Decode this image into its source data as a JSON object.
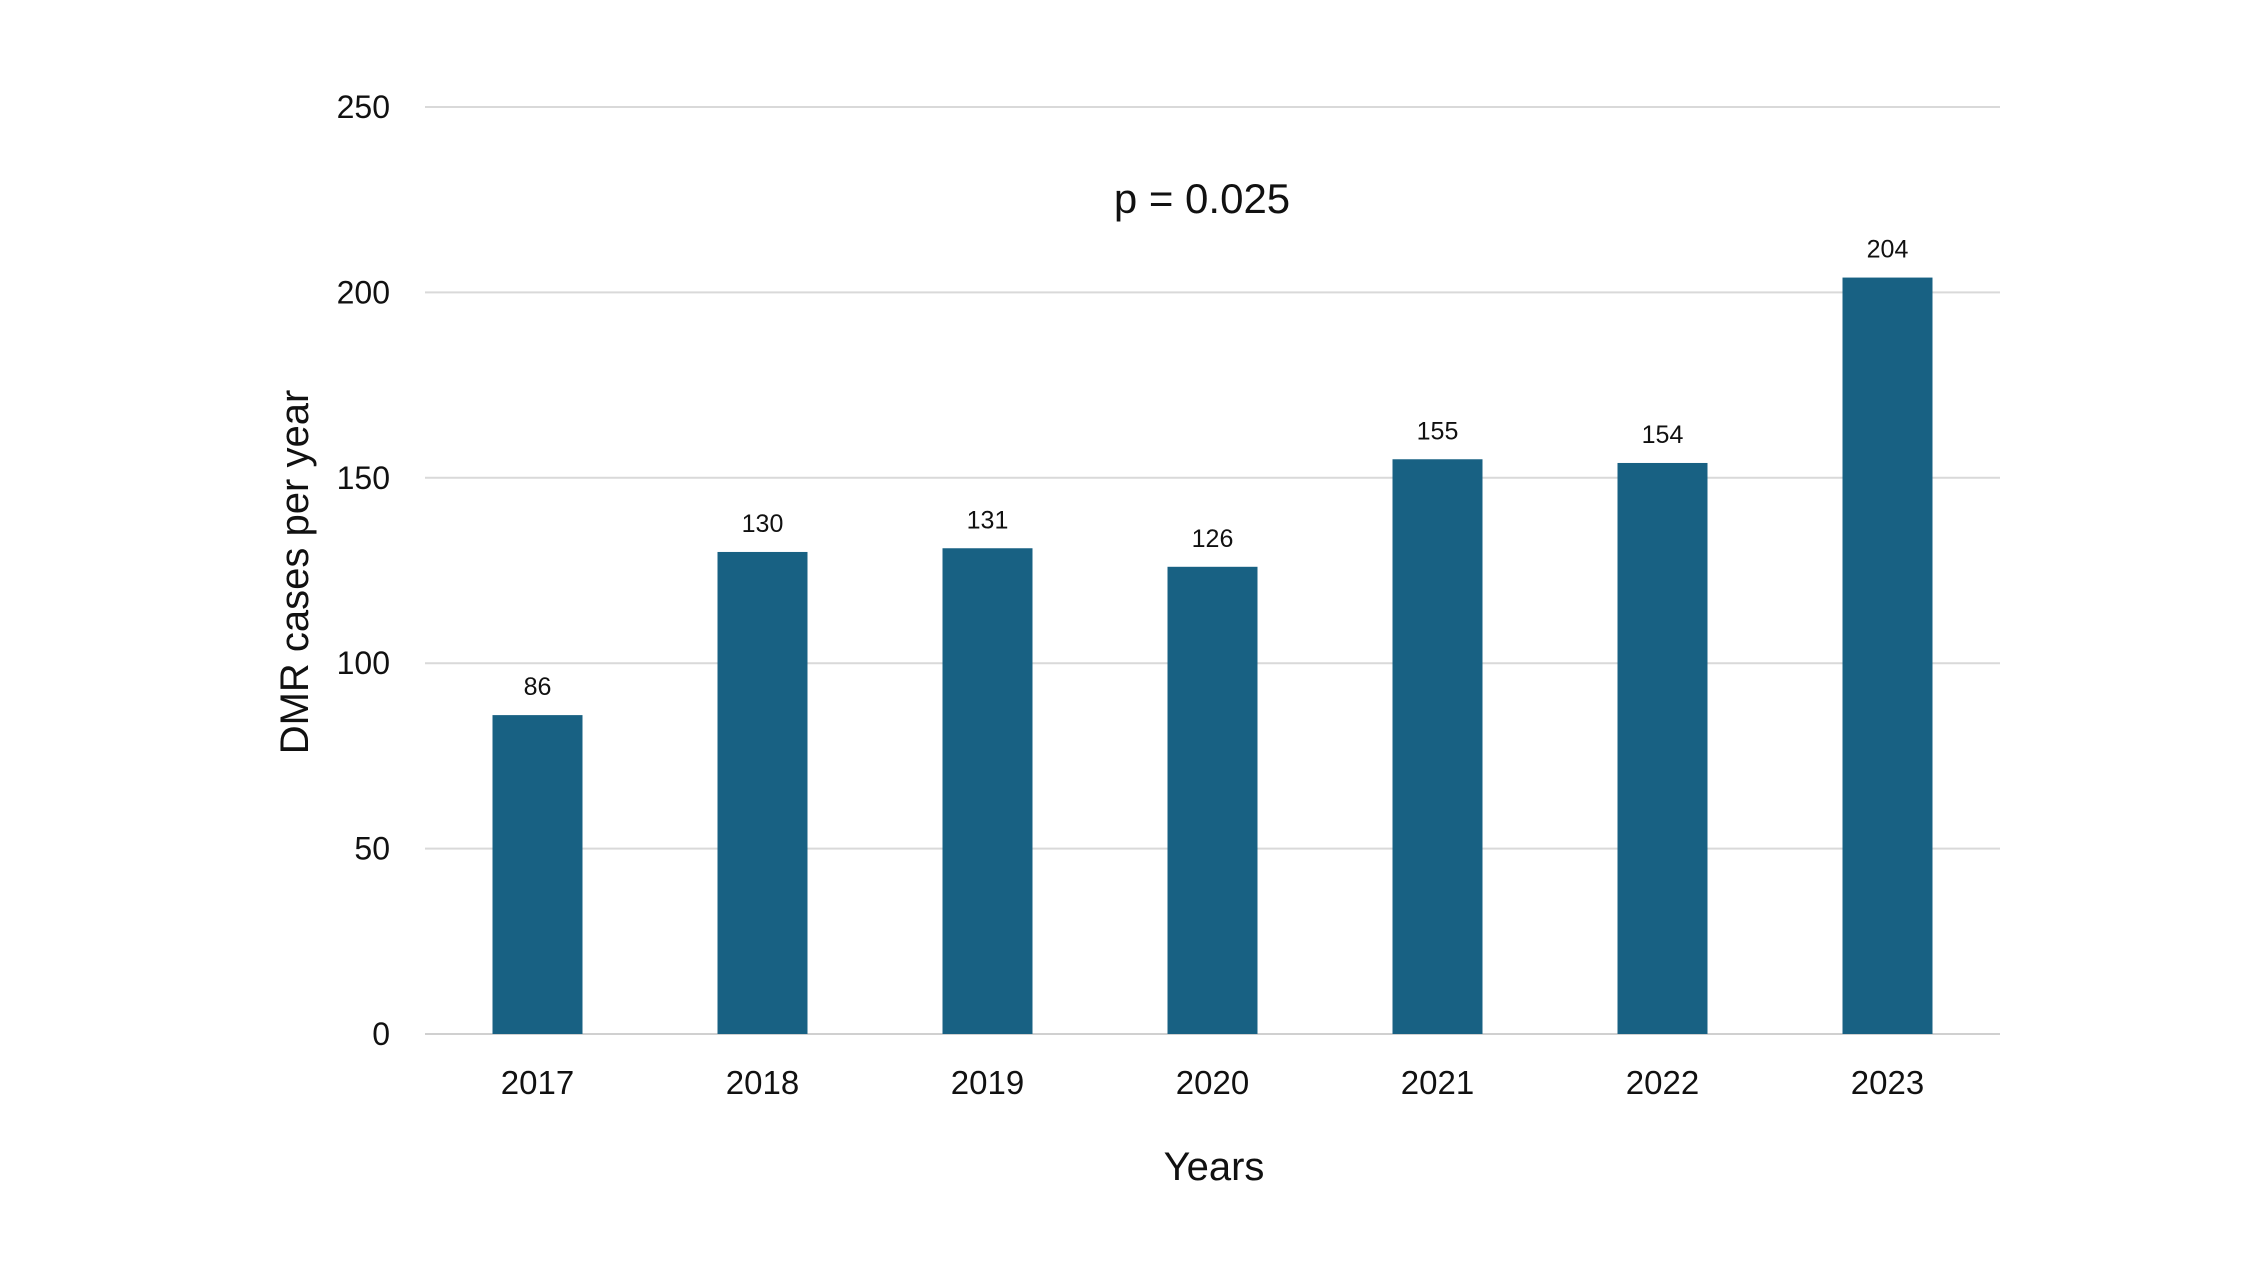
{
  "chart_data": {
    "type": "bar",
    "title": "",
    "annotation": "p = 0.025",
    "xlabel": "Years",
    "ylabel": "DMR cases per year",
    "categories": [
      "2017",
      "2018",
      "2019",
      "2020",
      "2021",
      "2022",
      "2023"
    ],
    "values": [
      86,
      130,
      131,
      126,
      155,
      154,
      204
    ],
    "data_labels": [
      "86",
      "130",
      "131",
      "126",
      "155",
      "154",
      "204"
    ],
    "ylim": [
      0,
      250
    ],
    "yticks": [
      0,
      50,
      100,
      150,
      200,
      250
    ],
    "ytick_labels": [
      "0",
      "50",
      "100",
      "150",
      "200",
      "250"
    ],
    "grid": true,
    "legend": "none",
    "bar_color": "#186183"
  }
}
